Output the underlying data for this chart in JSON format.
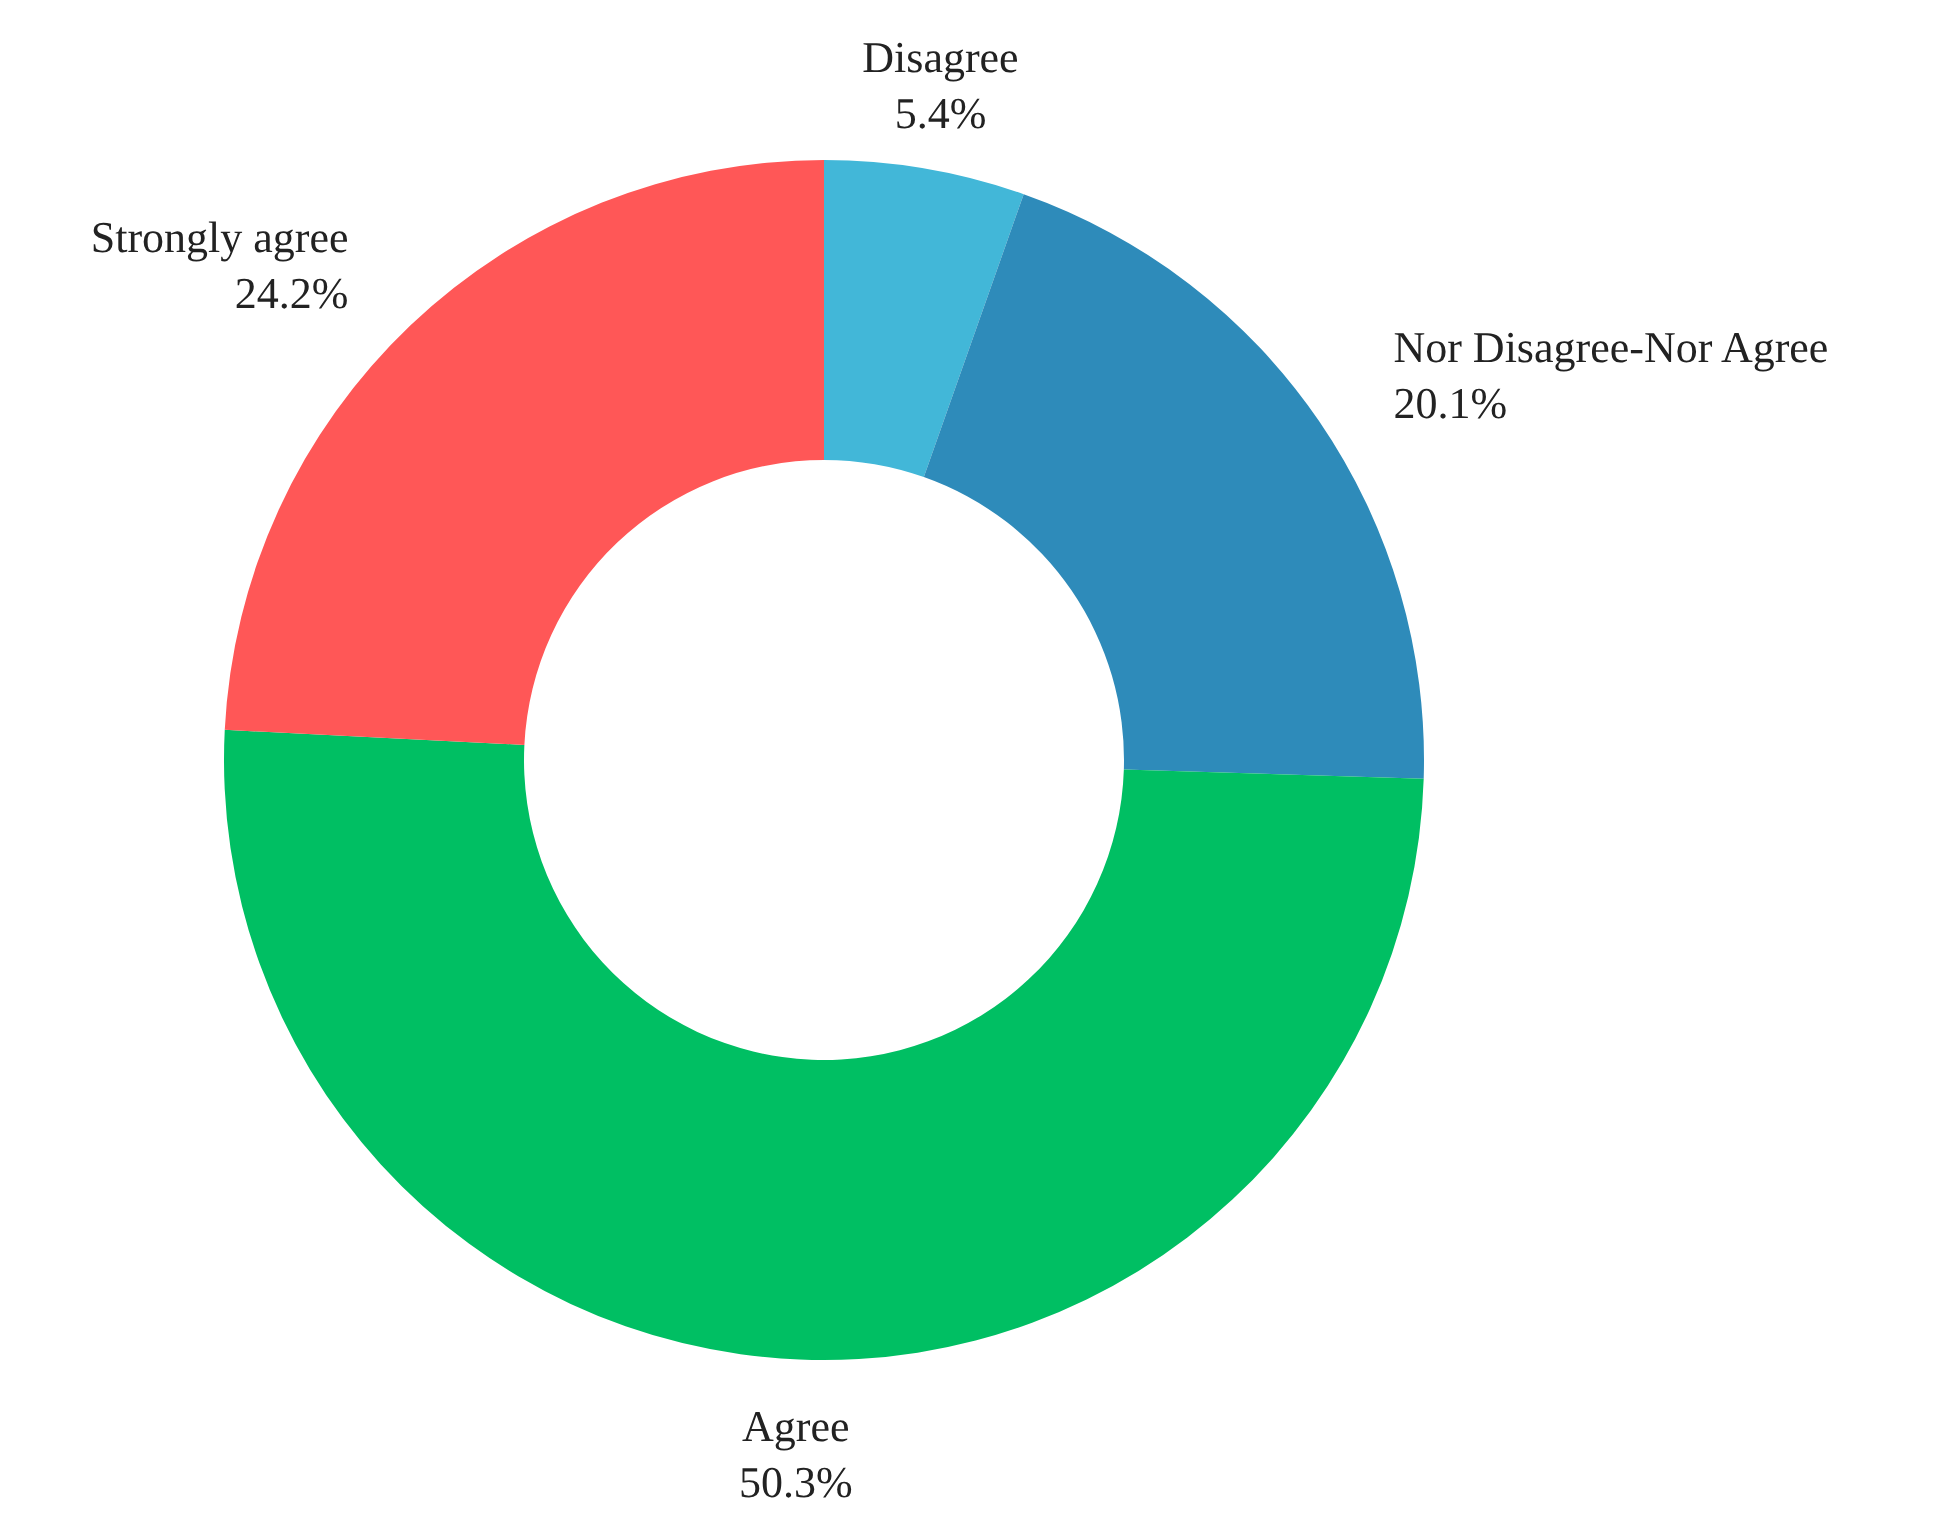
{
  "chart_data": {
    "type": "donut",
    "categories": [
      "Disagree",
      "Nor Disagree-Nor Agree",
      "Agree",
      "Strongly agree"
    ],
    "values": [
      5.4,
      20.1,
      50.3,
      24.2
    ],
    "colors": [
      "#42b7d8",
      "#2e8bba",
      "#00bf63",
      "#ff5757"
    ],
    "value_labels": [
      "5.4%",
      "20.1%",
      "50.3%",
      "24.2%"
    ]
  }
}
